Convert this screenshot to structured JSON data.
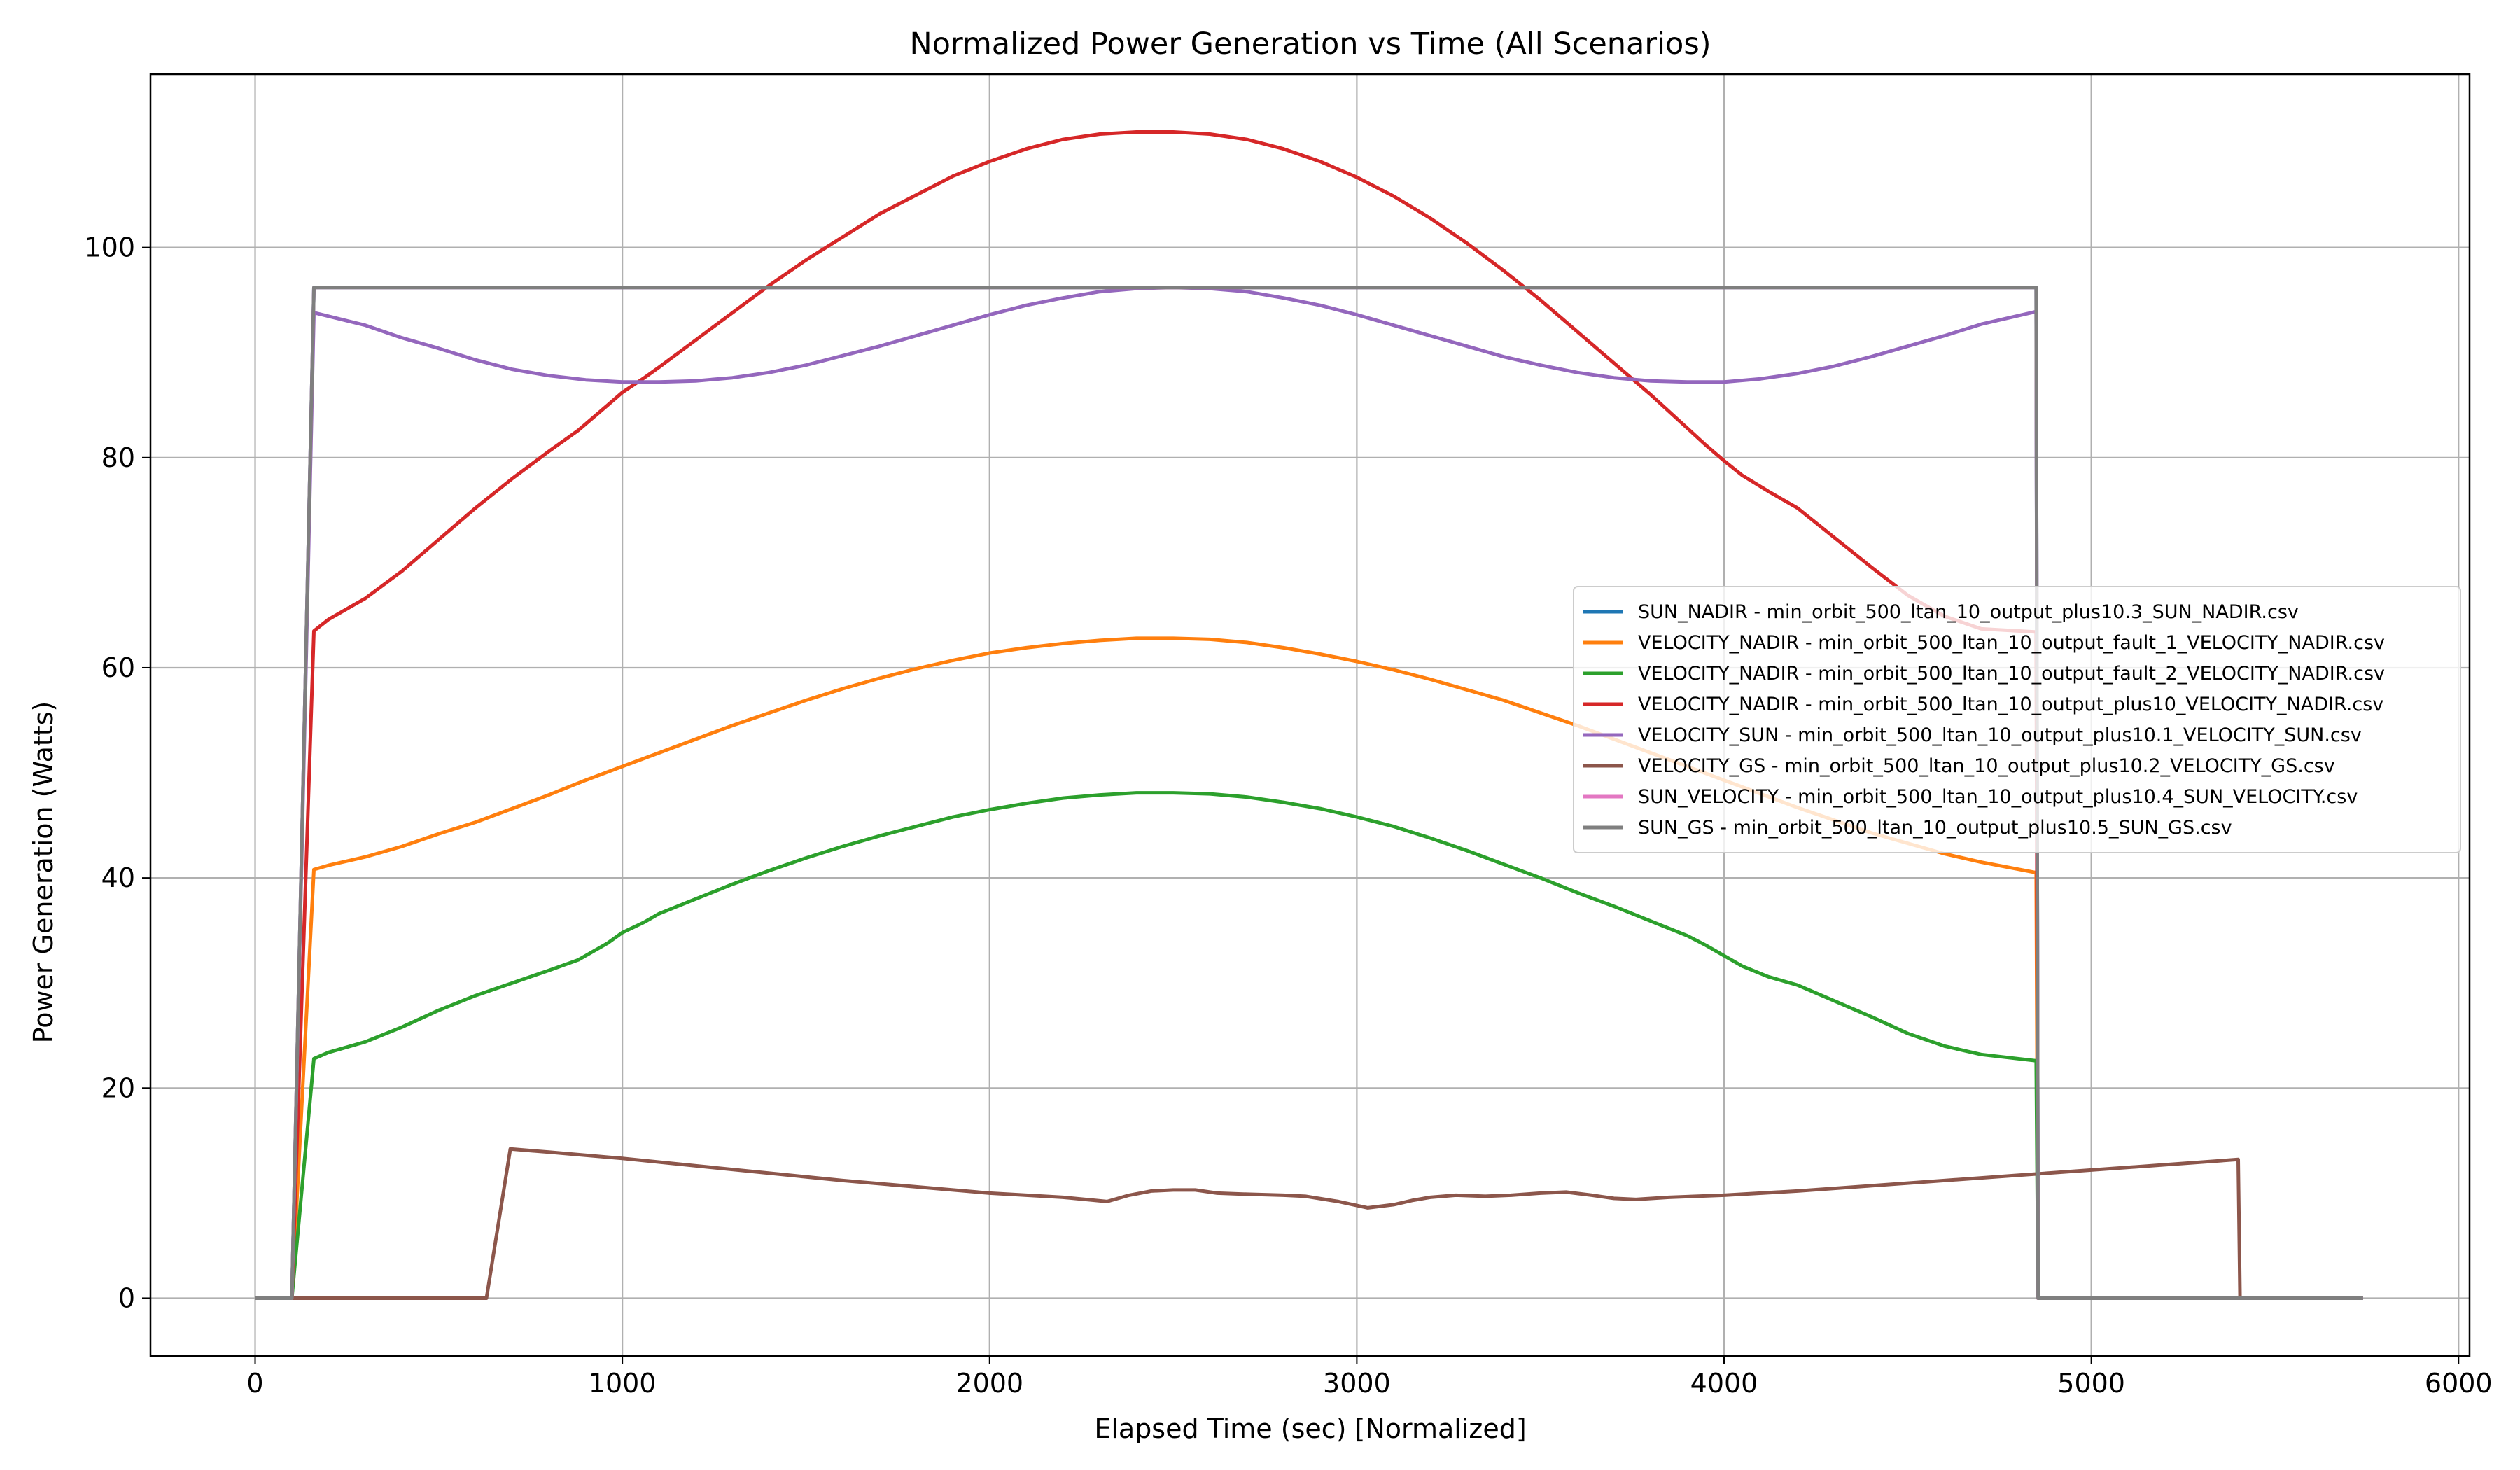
{
  "chart_data": {
    "type": "line",
    "title": "Normalized Power Generation vs Time (All Scenarios)",
    "xlabel": "Elapsed Time (sec) [Normalized]",
    "ylabel": "Power Generation (Watts)",
    "xlim": [
      -285,
      6030
    ],
    "ylim": [
      -5.5,
      116.5
    ],
    "xticks": [
      0,
      1000,
      2000,
      3000,
      4000,
      5000,
      6000
    ],
    "yticks": [
      0,
      20,
      40,
      60,
      80,
      100
    ],
    "grid": true,
    "legend_position": "center-right",
    "series": [
      {
        "name": "SUN_NADIR - min_orbit_500_ltan_10_output_plus10.3_SUN_NADIR.csv",
        "color": "#1f77b4",
        "x": [
          0,
          100,
          160,
          4850,
          4855,
          5740
        ],
        "y": [
          0,
          0,
          96.2,
          96.2,
          0,
          0
        ]
      },
      {
        "name": "VELOCITY_NADIR - min_orbit_500_ltan_10_output_fault_1_VELOCITY_NADIR.csv",
        "color": "#ff7f0e",
        "x": [
          0,
          100,
          160,
          200,
          300,
          400,
          500,
          600,
          700,
          800,
          900,
          1000,
          1100,
          1200,
          1300,
          1400,
          1500,
          1600,
          1700,
          1800,
          1900,
          2000,
          2100,
          2200,
          2300,
          2400,
          2500,
          2600,
          2700,
          2800,
          2900,
          3000,
          3100,
          3200,
          3300,
          3400,
          3500,
          3600,
          3700,
          3800,
          3900,
          4000,
          4100,
          4200,
          4300,
          4400,
          4500,
          4600,
          4700,
          4850,
          4855,
          5740
        ],
        "y": [
          0,
          0,
          40.8,
          41.2,
          42.0,
          43.0,
          44.2,
          45.3,
          46.6,
          47.9,
          49.3,
          50.6,
          51.9,
          53.2,
          54.5,
          55.7,
          56.9,
          58.0,
          59.0,
          59.9,
          60.7,
          61.4,
          61.9,
          62.3,
          62.6,
          62.8,
          62.8,
          62.7,
          62.4,
          61.9,
          61.3,
          60.6,
          59.8,
          58.9,
          57.9,
          56.9,
          55.7,
          54.5,
          53.2,
          51.9,
          50.6,
          49.3,
          48.0,
          46.7,
          45.5,
          44.3,
          43.3,
          42.3,
          41.5,
          40.5,
          0,
          0
        ]
      },
      {
        "name": "VELOCITY_NADIR - min_orbit_500_ltan_10_output_fault_2_VELOCITY_NADIR.csv",
        "color": "#2ca02c",
        "x": [
          0,
          100,
          160,
          200,
          300,
          400,
          500,
          600,
          700,
          800,
          880,
          960,
          1000,
          1060,
          1100,
          1200,
          1300,
          1400,
          1500,
          1600,
          1700,
          1800,
          1900,
          2000,
          2100,
          2200,
          2300,
          2400,
          2500,
          2600,
          2700,
          2800,
          2900,
          3000,
          3100,
          3200,
          3300,
          3400,
          3500,
          3600,
          3700,
          3800,
          3900,
          3950,
          4000,
          4050,
          4120,
          4200,
          4300,
          4400,
          4500,
          4600,
          4700,
          4850,
          4855,
          5740
        ],
        "y": [
          0,
          0,
          22.8,
          23.4,
          24.4,
          25.8,
          27.4,
          28.8,
          30.0,
          31.2,
          32.2,
          33.8,
          34.8,
          35.8,
          36.6,
          38.0,
          39.4,
          40.7,
          41.9,
          43.0,
          44.0,
          44.9,
          45.8,
          46.5,
          47.1,
          47.6,
          47.9,
          48.1,
          48.1,
          48.0,
          47.7,
          47.2,
          46.6,
          45.8,
          44.9,
          43.8,
          42.6,
          41.3,
          40.0,
          38.6,
          37.3,
          35.9,
          34.5,
          33.6,
          32.6,
          31.6,
          30.6,
          29.8,
          28.3,
          26.8,
          25.2,
          24.0,
          23.2,
          22.6,
          0,
          0
        ]
      },
      {
        "name": "VELOCITY_NADIR - min_orbit_500_ltan_10_output_plus10_VELOCITY_NADIR.csv",
        "color": "#d62728",
        "x": [
          0,
          100,
          160,
          200,
          300,
          400,
          500,
          600,
          700,
          800,
          880,
          960,
          1000,
          1060,
          1100,
          1200,
          1300,
          1400,
          1500,
          1600,
          1700,
          1800,
          1900,
          2000,
          2100,
          2200,
          2300,
          2400,
          2500,
          2600,
          2700,
          2800,
          2900,
          3000,
          3100,
          3200,
          3300,
          3400,
          3500,
          3600,
          3700,
          3800,
          3900,
          3950,
          4000,
          4050,
          4120,
          4200,
          4300,
          4400,
          4500,
          4600,
          4700,
          4850,
          4855,
          5740
        ],
        "y": [
          0,
          0,
          63.5,
          64.6,
          66.6,
          69.2,
          72.2,
          75.2,
          78.0,
          80.6,
          82.6,
          85.0,
          86.2,
          87.6,
          88.6,
          91.2,
          93.8,
          96.4,
          98.8,
          101.0,
          103.2,
          105.0,
          106.8,
          108.2,
          109.4,
          110.3,
          110.8,
          111.0,
          111.0,
          110.8,
          110.3,
          109.4,
          108.2,
          106.7,
          104.9,
          102.8,
          100.4,
          97.8,
          95.0,
          92.0,
          89.0,
          86.0,
          82.8,
          81.2,
          79.7,
          78.3,
          76.8,
          75.2,
          72.4,
          69.6,
          66.9,
          64.9,
          63.7,
          63.4,
          0,
          0
        ]
      },
      {
        "name": "VELOCITY_SUN - min_orbit_500_ltan_10_output_plus10.1_VELOCITY_SUN.csv",
        "color": "#9467bd",
        "x": [
          0,
          100,
          160,
          300,
          400,
          500,
          600,
          700,
          800,
          900,
          1000,
          1100,
          1200,
          1300,
          1400,
          1500,
          1600,
          1700,
          1800,
          1900,
          2000,
          2100,
          2200,
          2300,
          2400,
          2500,
          2600,
          2700,
          2800,
          2900,
          3000,
          3100,
          3200,
          3300,
          3400,
          3500,
          3600,
          3700,
          3800,
          3900,
          4000,
          4100,
          4200,
          4300,
          4400,
          4500,
          4600,
          4700,
          4850,
          4855,
          5740
        ],
        "y": [
          0,
          0,
          93.8,
          92.6,
          91.4,
          90.4,
          89.3,
          88.4,
          87.8,
          87.4,
          87.2,
          87.2,
          87.3,
          87.6,
          88.1,
          88.8,
          89.7,
          90.6,
          91.6,
          92.6,
          93.6,
          94.5,
          95.2,
          95.8,
          96.1,
          96.2,
          96.1,
          95.8,
          95.2,
          94.5,
          93.6,
          92.6,
          91.6,
          90.6,
          89.6,
          88.8,
          88.1,
          87.6,
          87.3,
          87.2,
          87.2,
          87.5,
          88.0,
          88.7,
          89.6,
          90.6,
          91.6,
          92.7,
          93.9,
          0,
          0
        ]
      },
      {
        "name": "VELOCITY_GS - min_orbit_500_ltan_10_output_plus10.2_VELOCITY_GS.csv",
        "color": "#8c564b",
        "x": [
          0,
          100,
          630,
          695,
          800,
          1000,
          1200,
          1400,
          1600,
          1800,
          2000,
          2200,
          2320,
          2380,
          2440,
          2500,
          2560,
          2620,
          2700,
          2800,
          2860,
          2950,
          3030,
          3100,
          3150,
          3200,
          3270,
          3350,
          3420,
          3500,
          3570,
          3640,
          3700,
          3760,
          3850,
          4000,
          4200,
          4400,
          4600,
          4800,
          5000,
          5200,
          5400,
          5405,
          5740
        ],
        "y": [
          0,
          0,
          0,
          14.2,
          13.9,
          13.3,
          12.6,
          11.9,
          11.2,
          10.6,
          10.0,
          9.6,
          9.2,
          9.8,
          10.2,
          10.3,
          10.3,
          10.0,
          9.9,
          9.8,
          9.7,
          9.2,
          8.6,
          8.9,
          9.3,
          9.6,
          9.8,
          9.7,
          9.8,
          10.0,
          10.1,
          9.8,
          9.5,
          9.4,
          9.6,
          9.8,
          10.2,
          10.7,
          11.2,
          11.7,
          12.2,
          12.7,
          13.2,
          0,
          0
        ]
      },
      {
        "name": "SUN_VELOCITY - min_orbit_500_ltan_10_output_plus10.4_SUN_VELOCITY.csv",
        "color": "#e377c2",
        "x": [
          0,
          100,
          160,
          4850,
          4855,
          5740
        ],
        "y": [
          0,
          0,
          96.2,
          96.2,
          0,
          0
        ]
      },
      {
        "name": "SUN_GS - min_orbit_500_ltan_10_output_plus10.5_SUN_GS.csv",
        "color": "#7f7f7f",
        "x": [
          0,
          100,
          160,
          4850,
          4855,
          5740
        ],
        "y": [
          0,
          0,
          96.2,
          96.2,
          0,
          0
        ]
      }
    ]
  }
}
